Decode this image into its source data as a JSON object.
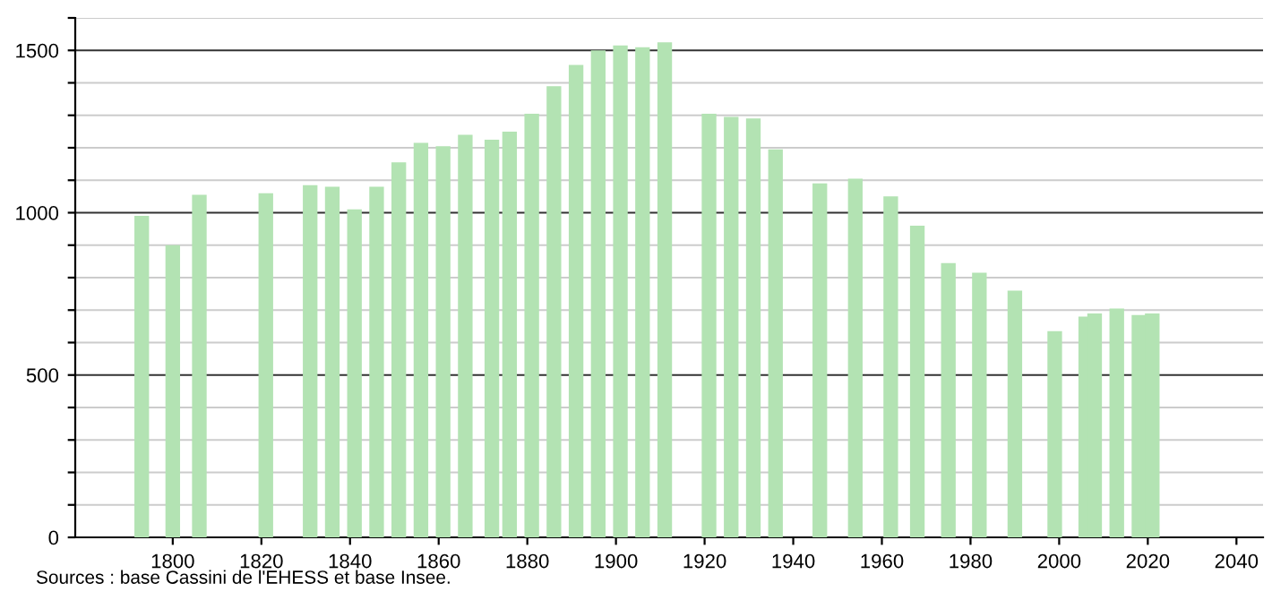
{
  "chart_data": {
    "type": "bar",
    "x": [
      1793,
      1800,
      1806,
      1821,
      1831,
      1836,
      1841,
      1846,
      1851,
      1856,
      1861,
      1866,
      1872,
      1876,
      1881,
      1886,
      1891,
      1896,
      1901,
      1906,
      1911,
      1921,
      1926,
      1931,
      1936,
      1946,
      1954,
      1962,
      1968,
      1975,
      1982,
      1990,
      1999,
      2006,
      2008,
      2013,
      2018,
      2021
    ],
    "values": [
      990,
      900,
      1055,
      1060,
      1085,
      1080,
      1010,
      1080,
      1155,
      1215,
      1205,
      1240,
      1225,
      1250,
      1305,
      1390,
      1455,
      1500,
      1515,
      1510,
      1525,
      1305,
      1295,
      1290,
      1195,
      1090,
      1105,
      1050,
      960,
      845,
      815,
      760,
      635,
      680,
      690,
      705,
      685,
      690
    ],
    "color": "#b3e3b3",
    "xlim": [
      1778,
      2046
    ],
    "xticks": [
      1800,
      1820,
      1840,
      1860,
      1880,
      1900,
      1920,
      1940,
      1960,
      1980,
      2000,
      2020,
      2040
    ],
    "ylim": [
      0,
      1600
    ],
    "yticks": [
      0,
      {
        "value": 100,
        "label": null
      },
      {
        "value": 200,
        "label": null
      },
      {
        "value": 300,
        "label": null
      },
      {
        "value": 400,
        "label": null
      },
      500,
      {
        "value": 600,
        "label": null
      },
      {
        "value": 700,
        "label": null
      },
      {
        "value": 800,
        "label": null
      },
      {
        "value": 900,
        "label": null
      },
      1000,
      {
        "value": 1100,
        "label": null
      },
      {
        "value": 1200,
        "label": null
      },
      {
        "value": 1300,
        "label": null
      },
      {
        "value": 1400,
        "label": null
      },
      1500,
      {
        "value": 1600,
        "label": null
      }
    ],
    "grid": "y",
    "annotations": [
      "Sources : base Cassini de l'EHESS et base Insee."
    ]
  }
}
